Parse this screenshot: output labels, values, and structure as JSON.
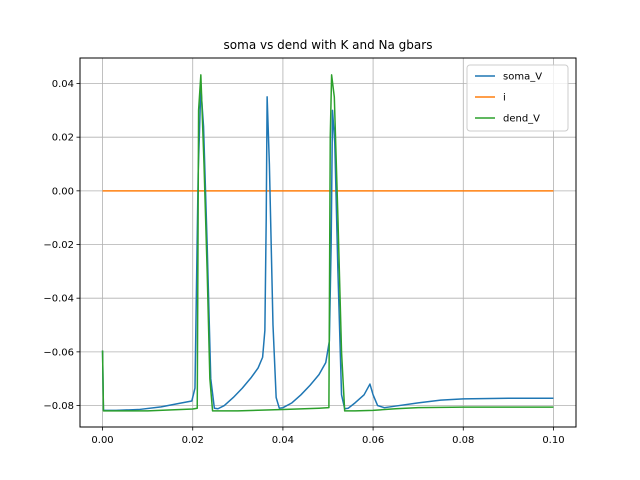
{
  "chart_data": {
    "type": "line",
    "title": "soma vs dend with K and Na gbars",
    "xlabel": "",
    "ylabel": "",
    "xlim": [
      -0.005,
      0.105
    ],
    "ylim": [
      -0.088,
      0.0495
    ],
    "grid": true,
    "legend_position": "top-right",
    "x_ticks": [
      0.0,
      0.02,
      0.04,
      0.06,
      0.08,
      0.1
    ],
    "x_tick_labels": [
      "0.00",
      "0.02",
      "0.04",
      "0.06",
      "0.08",
      "0.10"
    ],
    "y_ticks": [
      -0.08,
      -0.06,
      -0.04,
      -0.02,
      0.0,
      0.02,
      0.04
    ],
    "y_tick_labels": [
      "−0.08",
      "−0.06",
      "−0.04",
      "−0.02",
      "0.00",
      "0.02",
      "0.04"
    ],
    "series": [
      {
        "name": "soma_V",
        "color": "#1f77b4",
        "points": [
          [
            0.0,
            -0.0595
          ],
          [
            0.0002,
            -0.0818
          ],
          [
            0.003,
            -0.0818
          ],
          [
            0.008,
            -0.0815
          ],
          [
            0.013,
            -0.0805
          ],
          [
            0.017,
            -0.0792
          ],
          [
            0.0198,
            -0.0783
          ],
          [
            0.0205,
            -0.0735
          ],
          [
            0.0212,
            0.006
          ],
          [
            0.0218,
            0.0385
          ],
          [
            0.0224,
            0.024
          ],
          [
            0.0232,
            -0.02
          ],
          [
            0.024,
            -0.07
          ],
          [
            0.0248,
            -0.081
          ],
          [
            0.0256,
            -0.0812
          ],
          [
            0.027,
            -0.08
          ],
          [
            0.029,
            -0.077
          ],
          [
            0.031,
            -0.0735
          ],
          [
            0.033,
            -0.0695
          ],
          [
            0.0345,
            -0.066
          ],
          [
            0.0355,
            -0.062
          ],
          [
            0.036,
            -0.052
          ],
          [
            0.0363,
            -0.01
          ],
          [
            0.0365,
            0.035
          ],
          [
            0.037,
            0.01
          ],
          [
            0.0378,
            -0.05
          ],
          [
            0.0385,
            -0.077
          ],
          [
            0.0392,
            -0.081
          ],
          [
            0.04,
            -0.0808
          ],
          [
            0.042,
            -0.079
          ],
          [
            0.044,
            -0.076
          ],
          [
            0.046,
            -0.0725
          ],
          [
            0.048,
            -0.0685
          ],
          [
            0.0495,
            -0.064
          ],
          [
            0.0503,
            -0.056
          ],
          [
            0.0507,
            -0.02
          ],
          [
            0.051,
            0.03
          ],
          [
            0.0515,
            0.018
          ],
          [
            0.0522,
            -0.03
          ],
          [
            0.053,
            -0.076
          ],
          [
            0.0537,
            -0.0812
          ],
          [
            0.0545,
            -0.081
          ],
          [
            0.056,
            -0.079
          ],
          [
            0.058,
            -0.076
          ],
          [
            0.0593,
            -0.072
          ],
          [
            0.06,
            -0.076
          ],
          [
            0.061,
            -0.08
          ],
          [
            0.0625,
            -0.0808
          ],
          [
            0.065,
            -0.0802
          ],
          [
            0.07,
            -0.079
          ],
          [
            0.075,
            -0.078
          ],
          [
            0.08,
            -0.0775
          ],
          [
            0.09,
            -0.0773
          ],
          [
            0.1,
            -0.0773
          ]
        ]
      },
      {
        "name": "i",
        "color": "#ff7f0e",
        "points": [
          [
            0.0,
            0.0
          ],
          [
            0.1,
            0.0
          ]
        ]
      },
      {
        "name": "dend_V",
        "color": "#2ca02c",
        "points": [
          [
            0.0,
            -0.0595
          ],
          [
            0.0002,
            -0.082
          ],
          [
            0.01,
            -0.082
          ],
          [
            0.02,
            -0.0813
          ],
          [
            0.021,
            -0.081
          ],
          [
            0.0213,
            0.03
          ],
          [
            0.0218,
            0.0432
          ],
          [
            0.0225,
            0.01
          ],
          [
            0.0232,
            -0.03
          ],
          [
            0.0238,
            -0.07
          ],
          [
            0.0244,
            -0.082
          ],
          [
            0.03,
            -0.082
          ],
          [
            0.04,
            -0.0815
          ],
          [
            0.048,
            -0.081
          ],
          [
            0.0502,
            -0.0808
          ],
          [
            0.0505,
            0.02
          ],
          [
            0.0508,
            0.0432
          ],
          [
            0.0514,
            0.035
          ],
          [
            0.0522,
            -0.01
          ],
          [
            0.053,
            -0.06
          ],
          [
            0.0537,
            -0.082
          ],
          [
            0.056,
            -0.082
          ],
          [
            0.06,
            -0.0818
          ],
          [
            0.065,
            -0.0812
          ],
          [
            0.07,
            -0.0808
          ],
          [
            0.08,
            -0.0806
          ],
          [
            0.1,
            -0.0806
          ]
        ]
      }
    ]
  }
}
